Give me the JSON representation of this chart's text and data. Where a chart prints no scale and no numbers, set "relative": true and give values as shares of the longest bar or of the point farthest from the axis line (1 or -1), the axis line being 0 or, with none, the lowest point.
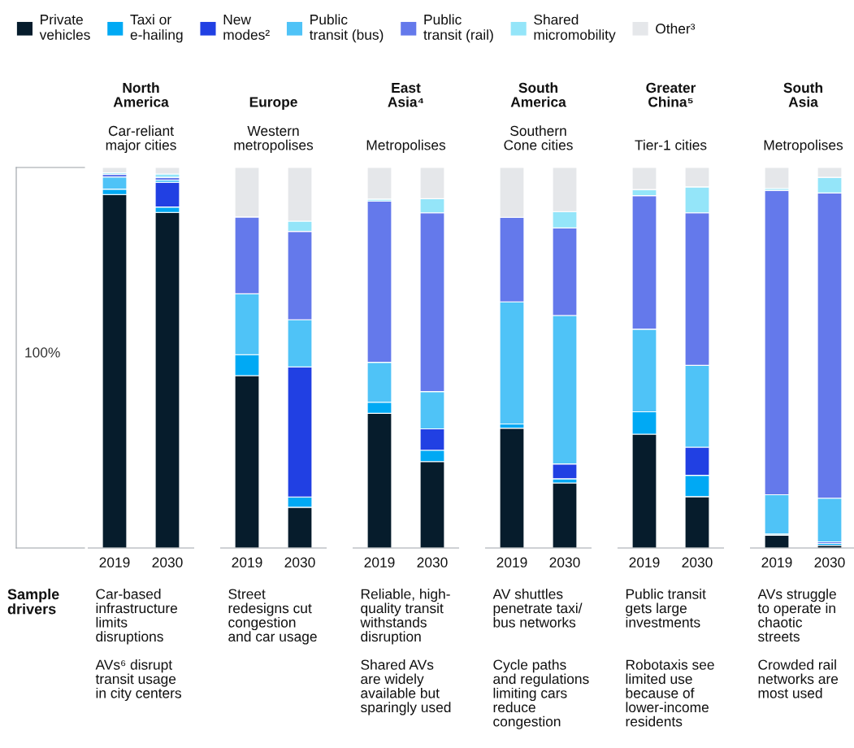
{
  "chart_data": [
    {
      "type": "bar",
      "stacked": true,
      "relative": true,
      "legend": "top",
      "title": "North\nAmerica",
      "subtitle": "Car-reliant\nmajor cities",
      "categories": [
        "2019",
        "2030"
      ],
      "series": [
        {
          "name": "Private\nvehicles",
          "color": "#061c2c",
          "values": [
            0.929,
            0.882
          ]
        },
        {
          "name": "Taxi or\ne-hailing",
          "color": "#00a9f4",
          "values": [
            0.014,
            0.014
          ]
        },
        {
          "name": "New\nmodes²",
          "color": "#2140e3",
          "values": [
            0,
            0.065
          ]
        },
        {
          "name": "Public\ntransit (bus)",
          "color": "#4fc3f7",
          "values": [
            0.032,
            0.006
          ]
        },
        {
          "name": "Public\ntransit (rail)",
          "color": "#6479eb",
          "values": [
            0.007,
            0.007
          ]
        },
        {
          "name": "Shared\nmicromobility",
          "color": "#94e5f9",
          "values": [
            0.004,
            0.009
          ]
        },
        {
          "name": "Other³",
          "color": "#e5e7ea",
          "values": [
            0.014,
            0.017
          ]
        }
      ],
      "annotations": [
        "100%",
        "Sample\ndrivers",
        "Car-based\ninfrastructure\nlimits\ndisruptions",
        "AVs⁶ disrupt\ntransit usage\nin city centers"
      ]
    },
    {
      "type": "bar",
      "stacked": true,
      "relative": true,
      "title": "Europe",
      "subtitle": "Western\nmetropolises",
      "categories": [
        "2019",
        "2030"
      ],
      "series": [
        {
          "color": "#061c2c",
          "values": [
            0.453,
            0.107
          ]
        },
        {
          "color": "#00a9f4",
          "values": [
            0.055,
            0.027
          ]
        },
        {
          "color": "#2140e3",
          "values": [
            0,
            0.342
          ]
        },
        {
          "color": "#4fc3f7",
          "values": [
            0.16,
            0.124
          ]
        },
        {
          "color": "#6479eb",
          "values": [
            0.202,
            0.232
          ]
        },
        {
          "color": "#94e5f9",
          "values": [
            0,
            0.027
          ]
        },
        {
          "color": "#e5e7ea",
          "values": [
            0.13,
            0.141
          ]
        }
      ],
      "annotations": [
        "Street\nredesigns cut\ncongestion\nand car usage"
      ]
    },
    {
      "type": "bar",
      "stacked": true,
      "relative": true,
      "title": "East\nAsia⁴",
      "subtitle": "Metropolises",
      "categories": [
        "2019",
        "2030"
      ],
      "series": [
        {
          "color": "#061c2c",
          "values": [
            0.354,
            0.227
          ]
        },
        {
          "color": "#00a9f4",
          "values": [
            0.029,
            0.03
          ]
        },
        {
          "color": "#2140e3",
          "values": [
            0,
            0.056
          ]
        },
        {
          "color": "#4fc3f7",
          "values": [
            0.105,
            0.098
          ]
        },
        {
          "color": "#6479eb",
          "values": [
            0.424,
            0.47
          ]
        },
        {
          "color": "#94e5f9",
          "values": [
            0.005,
            0.037
          ]
        },
        {
          "color": "#e5e7ea",
          "values": [
            0.083,
            0.082
          ]
        }
      ],
      "annotations": [
        "Reliable, high-\nquality transit\nwithstands\ndisruption",
        "Shared AVs\nare widely\navailable but\nsparingly used"
      ]
    },
    {
      "type": "bar",
      "stacked": true,
      "relative": true,
      "title": "South\nAmerica",
      "subtitle": "Southern\nCone cities",
      "categories": [
        "2019",
        "2030"
      ],
      "series": [
        {
          "color": "#061c2c",
          "values": [
            0.315,
            0.171
          ]
        },
        {
          "color": "#00a9f4",
          "values": [
            0.011,
            0.011
          ]
        },
        {
          "color": "#2140e3",
          "values": [
            0,
            0.039
          ]
        },
        {
          "color": "#4fc3f7",
          "values": [
            0.321,
            0.39
          ]
        },
        {
          "color": "#6479eb",
          "values": [
            0.222,
            0.23
          ]
        },
        {
          "color": "#94e5f9",
          "values": [
            0,
            0.043
          ]
        },
        {
          "color": "#e5e7ea",
          "values": [
            0.131,
            0.116
          ]
        }
      ],
      "annotations": [
        "AV shuttles\npenetrate taxi/\nbus networks",
        "Cycle paths\nand regulations\nlimiting cars\nreduce\ncongestion"
      ]
    },
    {
      "type": "bar",
      "stacked": true,
      "relative": true,
      "title": "Greater\nChina⁵",
      "subtitle": "Tier-1 cities",
      "categories": [
        "2019",
        "2030"
      ],
      "series": [
        {
          "color": "#061c2c",
          "values": [
            0.299,
            0.135
          ]
        },
        {
          "color": "#00a9f4",
          "values": [
            0.059,
            0.056
          ]
        },
        {
          "color": "#2140e3",
          "values": [
            0,
            0.074
          ]
        },
        {
          "color": "#4fc3f7",
          "values": [
            0.217,
            0.215
          ]
        },
        {
          "color": "#6479eb",
          "values": [
            0.351,
            0.401
          ]
        },
        {
          "color": "#94e5f9",
          "values": [
            0.016,
            0.068
          ]
        },
        {
          "color": "#e5e7ea",
          "values": [
            0.058,
            0.051
          ]
        }
      ],
      "annotations": [
        "Public transit\ngets large\ninvestments",
        "Robotaxis see\nlimited use\nbecause of\nlower-income\nresidents"
      ]
    },
    {
      "type": "bar",
      "stacked": true,
      "relative": true,
      "title": "South\nAsia",
      "subtitle": "Metropolises",
      "categories": [
        "2019",
        "2030"
      ],
      "series": [
        {
          "color": "#061c2c",
          "values": [
            0.034,
            0.007
          ]
        },
        {
          "color": "#00a9f4",
          "values": [
            0.003,
            0.005
          ]
        },
        {
          "color": "#2140e3",
          "values": [
            0,
            0.004
          ]
        },
        {
          "color": "#4fc3f7",
          "values": [
            0.103,
            0.115
          ]
        },
        {
          "color": "#6479eb",
          "values": [
            0.8,
            0.802
          ]
        },
        {
          "color": "#94e5f9",
          "values": [
            0.005,
            0.041
          ]
        },
        {
          "color": "#e5e7ea",
          "values": [
            0.055,
            0.026
          ]
        }
      ],
      "annotations": [
        "AVs struggle\nto operate in\nchaotic\nstreets",
        "Crowded rail\nnetworks are\nmost used"
      ]
    }
  ]
}
